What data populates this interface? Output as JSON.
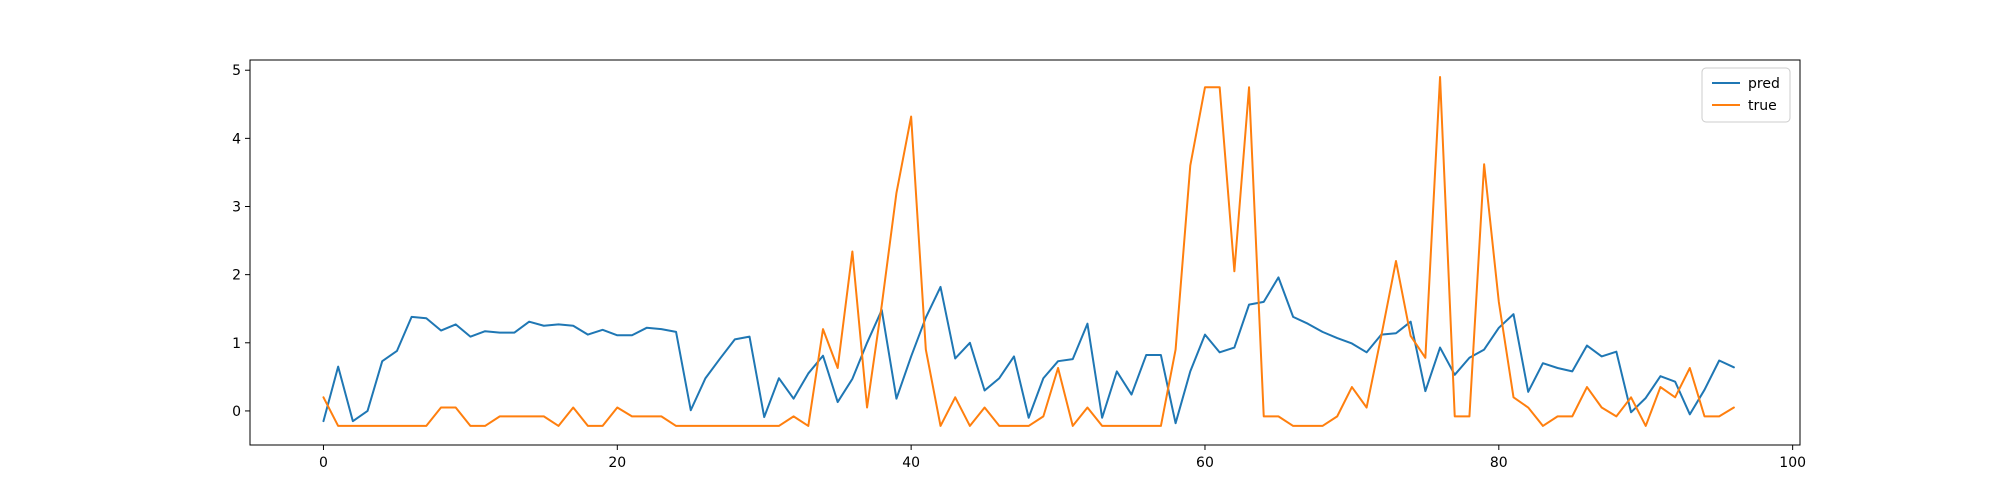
{
  "chart_data": {
    "type": "line",
    "title": "",
    "xlabel": "",
    "ylabel": "",
    "xlim": [
      -5,
      100.5
    ],
    "ylim": [
      -0.5,
      5.15
    ],
    "xticks": [
      0,
      20,
      40,
      60,
      80,
      100
    ],
    "yticks": [
      0,
      1,
      2,
      3,
      4,
      5
    ],
    "grid": false,
    "legend_position": "top-right",
    "x": [
      0,
      1,
      2,
      3,
      4,
      5,
      6,
      7,
      8,
      9,
      10,
      11,
      12,
      13,
      14,
      15,
      16,
      17,
      18,
      19,
      20,
      21,
      22,
      23,
      24,
      25,
      26,
      27,
      28,
      29,
      30,
      31,
      32,
      33,
      34,
      35,
      36,
      37,
      38,
      39,
      40,
      41,
      42,
      43,
      44,
      45,
      46,
      47,
      48,
      49,
      50,
      51,
      52,
      53,
      54,
      55,
      56,
      57,
      58,
      59,
      60,
      61,
      62,
      63,
      64,
      65,
      66,
      67,
      68,
      69,
      70,
      71,
      72,
      73,
      74,
      75,
      76,
      77,
      78,
      79,
      80,
      81,
      82,
      83,
      84,
      85,
      86,
      87,
      88,
      89,
      90,
      91,
      92,
      93,
      94,
      95,
      96
    ],
    "series": [
      {
        "name": "pred",
        "color": "#1f77b4",
        "values": [
          -0.15,
          0.65,
          -0.15,
          0.0,
          0.73,
          0.88,
          1.38,
          1.36,
          1.18,
          1.27,
          1.09,
          1.17,
          1.15,
          1.15,
          1.31,
          1.25,
          1.27,
          1.25,
          1.12,
          1.19,
          1.11,
          1.11,
          1.22,
          1.2,
          1.16,
          0.01,
          0.48,
          0.77,
          1.05,
          1.09,
          -0.09,
          0.48,
          0.18,
          0.55,
          0.81,
          0.13,
          0.47,
          1.0,
          1.48,
          0.18,
          0.8,
          1.37,
          1.82,
          0.77,
          1.0,
          0.3,
          0.48,
          0.8,
          -0.1,
          0.48,
          0.73,
          0.76,
          1.28,
          -0.1,
          0.58,
          0.24,
          0.82,
          0.82,
          -0.18,
          0.58,
          1.12,
          0.86,
          0.93,
          1.56,
          1.6,
          1.96,
          1.38,
          1.28,
          1.16,
          1.07,
          0.99,
          0.86,
          1.12,
          1.14,
          1.31,
          0.29,
          0.93,
          0.53,
          0.78,
          0.9,
          1.22,
          1.42,
          0.28,
          0.7,
          0.63,
          0.58,
          0.96,
          0.8,
          0.87,
          -0.02,
          0.19,
          0.51,
          0.43,
          -0.05,
          0.31,
          0.74,
          0.64
        ]
      },
      {
        "name": "true",
        "color": "#ff7f0e",
        "values": [
          0.2,
          -0.22,
          -0.22,
          -0.22,
          -0.22,
          -0.22,
          -0.22,
          -0.22,
          0.05,
          0.05,
          -0.22,
          -0.22,
          -0.08,
          -0.08,
          -0.08,
          -0.08,
          -0.22,
          0.05,
          -0.22,
          -0.22,
          0.05,
          -0.08,
          -0.08,
          -0.08,
          -0.22,
          -0.22,
          -0.22,
          -0.22,
          -0.22,
          -0.22,
          -0.22,
          -0.22,
          -0.08,
          -0.22,
          1.2,
          0.63,
          2.34,
          0.05,
          1.55,
          3.2,
          4.32,
          0.9,
          -0.22,
          0.2,
          -0.22,
          0.05,
          -0.22,
          -0.22,
          -0.22,
          -0.08,
          0.63,
          -0.22,
          0.05,
          -0.22,
          -0.22,
          -0.22,
          -0.22,
          -0.22,
          0.9,
          3.6,
          4.75,
          4.75,
          2.05,
          4.75,
          -0.08,
          -0.08,
          -0.22,
          -0.22,
          -0.22,
          -0.08,
          0.35,
          0.05,
          1.1,
          2.2,
          1.1,
          0.78,
          4.9,
          -0.08,
          -0.08,
          3.62,
          1.6,
          0.2,
          0.05,
          -0.22,
          -0.08,
          -0.08,
          0.35,
          0.05,
          -0.08,
          0.2,
          -0.22,
          0.35,
          0.2,
          0.63,
          -0.08,
          -0.08,
          0.05
        ]
      }
    ]
  }
}
